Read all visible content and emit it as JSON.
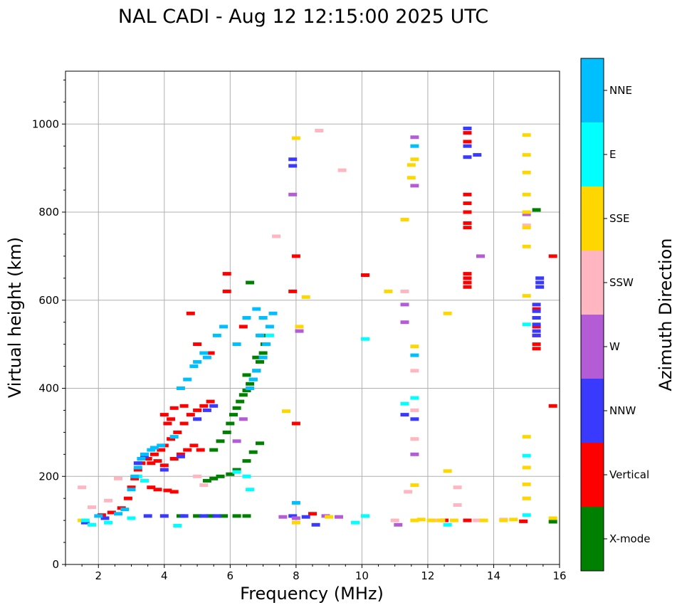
{
  "chart_data": {
    "type": "scatter",
    "title": "NAL CADI - Aug 12 12:15:00 2025 UTC",
    "xlabel": "Frequency (MHz)",
    "ylabel": "Virtual height (km)",
    "xlim": [
      1,
      16
    ],
    "ylim": [
      0,
      1120
    ],
    "xticks": [
      2,
      4,
      6,
      8,
      10,
      12,
      14,
      16
    ],
    "yticks": [
      0,
      200,
      400,
      600,
      800,
      1000
    ],
    "grid": true,
    "colorbar": {
      "label": "Azimuth Direction",
      "categories": [
        {
          "name": "X-mode",
          "color": "#008000"
        },
        {
          "name": "Vertical",
          "color": "#ff0000"
        },
        {
          "name": "NNW",
          "color": "#3a3aff"
        },
        {
          "name": "W",
          "color": "#b45cd6"
        },
        {
          "name": "SSW",
          "color": "#ffb6c1"
        },
        {
          "name": "SSE",
          "color": "#ffd700"
        },
        {
          "name": "E",
          "color": "#00ffff"
        },
        {
          "name": "NNE",
          "color": "#00bfff"
        }
      ]
    },
    "series": [
      {
        "name": "X-mode",
        "points": [
          [
            5.0,
            110
          ],
          [
            5.4,
            110
          ],
          [
            5.8,
            110
          ],
          [
            6.2,
            110
          ],
          [
            6.5,
            110
          ],
          [
            4.5,
            110
          ],
          [
            5.7,
            200
          ],
          [
            5.5,
            195
          ],
          [
            5.3,
            190
          ],
          [
            6.0,
            205
          ],
          [
            6.2,
            215
          ],
          [
            6.5,
            235
          ],
          [
            6.7,
            255
          ],
          [
            6.9,
            275
          ],
          [
            6.0,
            320
          ],
          [
            6.1,
            340
          ],
          [
            6.2,
            355
          ],
          [
            6.3,
            370
          ],
          [
            6.4,
            385
          ],
          [
            6.5,
            395
          ],
          [
            6.6,
            410
          ],
          [
            6.7,
            420
          ],
          [
            6.8,
            440
          ],
          [
            6.9,
            460
          ],
          [
            7.0,
            480
          ],
          [
            7.05,
            500
          ],
          [
            6.6,
            640
          ],
          [
            5.5,
            260
          ],
          [
            5.7,
            280
          ],
          [
            5.9,
            300
          ],
          [
            6.5,
            430
          ],
          [
            6.8,
            470
          ],
          [
            6.95,
            520
          ],
          [
            15.3,
            805
          ],
          [
            15.8,
            97
          ]
        ]
      },
      {
        "name": "Vertical",
        "points": [
          [
            2.1,
            112
          ],
          [
            2.4,
            118
          ],
          [
            2.7,
            128
          ],
          [
            2.9,
            150
          ],
          [
            3.0,
            175
          ],
          [
            3.1,
            195
          ],
          [
            3.2,
            215
          ],
          [
            3.3,
            230
          ],
          [
            3.5,
            240
          ],
          [
            3.7,
            250
          ],
          [
            3.9,
            260
          ],
          [
            4.0,
            270
          ],
          [
            4.2,
            285
          ],
          [
            4.4,
            300
          ],
          [
            4.6,
            320
          ],
          [
            4.8,
            340
          ],
          [
            5.0,
            350
          ],
          [
            5.2,
            360
          ],
          [
            5.4,
            370
          ],
          [
            3.6,
            230
          ],
          [
            3.8,
            235
          ],
          [
            4.0,
            225
          ],
          [
            4.3,
            240
          ],
          [
            4.5,
            250
          ],
          [
            4.7,
            260
          ],
          [
            4.9,
            270
          ],
          [
            5.1,
            260
          ],
          [
            3.6,
            175
          ],
          [
            3.8,
            170
          ],
          [
            4.1,
            168
          ],
          [
            4.3,
            165
          ],
          [
            4.1,
            320
          ],
          [
            4.0,
            340
          ],
          [
            4.2,
            330
          ],
          [
            4.6,
            360
          ],
          [
            4.3,
            355
          ],
          [
            4.8,
            570
          ],
          [
            5.0,
            500
          ],
          [
            5.4,
            480
          ],
          [
            5.9,
            660
          ],
          [
            5.9,
            620
          ],
          [
            6.4,
            540
          ],
          [
            8.0,
            700
          ],
          [
            8.0,
            320
          ],
          [
            7.9,
            620
          ],
          [
            8.5,
            115
          ],
          [
            10.1,
            657
          ],
          [
            13.2,
            980
          ],
          [
            13.2,
            960
          ],
          [
            13.2,
            840
          ],
          [
            13.2,
            820
          ],
          [
            13.2,
            800
          ],
          [
            13.2,
            775
          ],
          [
            13.2,
            765
          ],
          [
            13.2,
            660
          ],
          [
            13.2,
            650
          ],
          [
            13.2,
            640
          ],
          [
            13.2,
            630
          ],
          [
            15.3,
            580
          ],
          [
            15.3,
            560
          ],
          [
            15.3,
            540
          ],
          [
            15.3,
            520
          ],
          [
            15.3,
            500
          ],
          [
            15.3,
            490
          ],
          [
            15.8,
            700
          ],
          [
            15.8,
            360
          ],
          [
            12.5,
            100
          ],
          [
            13.2,
            100
          ],
          [
            14.9,
            98
          ]
        ]
      },
      {
        "name": "NNW",
        "points": [
          [
            3.5,
            110
          ],
          [
            4.0,
            110
          ],
          [
            4.6,
            110
          ],
          [
            5.2,
            110
          ],
          [
            5.6,
            110
          ],
          [
            1.6,
            95
          ],
          [
            2.2,
            105
          ],
          [
            3.2,
            230
          ],
          [
            3.4,
            245
          ],
          [
            4.0,
            215
          ],
          [
            4.5,
            245
          ],
          [
            5.0,
            330
          ],
          [
            5.3,
            350
          ],
          [
            5.5,
            360
          ],
          [
            7.9,
            110
          ],
          [
            8.3,
            108
          ],
          [
            8.6,
            90
          ],
          [
            7.9,
            920
          ],
          [
            7.9,
            905
          ],
          [
            11.3,
            340
          ],
          [
            11.6,
            330
          ],
          [
            13.2,
            990
          ],
          [
            13.2,
            950
          ],
          [
            13.2,
            925
          ],
          [
            13.5,
            930
          ],
          [
            15.4,
            650
          ],
          [
            15.4,
            640
          ],
          [
            15.4,
            630
          ],
          [
            15.3,
            590
          ],
          [
            15.3,
            575
          ],
          [
            15.3,
            560
          ],
          [
            15.3,
            545
          ],
          [
            15.3,
            530
          ],
          [
            15.3,
            520
          ]
        ]
      },
      {
        "name": "W",
        "points": [
          [
            7.6,
            108
          ],
          [
            8.0,
            105
          ],
          [
            8.9,
            110
          ],
          [
            9.3,
            108
          ],
          [
            11.1,
            90
          ],
          [
            7.9,
            840
          ],
          [
            8.1,
            530
          ],
          [
            11.3,
            550
          ],
          [
            11.3,
            590
          ],
          [
            11.6,
            970
          ],
          [
            11.6,
            860
          ],
          [
            11.6,
            250
          ],
          [
            13.6,
            700
          ],
          [
            15.0,
            795
          ],
          [
            6.4,
            330
          ],
          [
            6.2,
            280
          ]
        ]
      },
      {
        "name": "SSW",
        "points": [
          [
            1.5,
            175
          ],
          [
            1.8,
            130
          ],
          [
            2.3,
            145
          ],
          [
            2.6,
            195
          ],
          [
            5.0,
            200
          ],
          [
            5.2,
            180
          ],
          [
            8.7,
            985
          ],
          [
            9.4,
            895
          ],
          [
            7.4,
            745
          ],
          [
            11.3,
            620
          ],
          [
            11.6,
            440
          ],
          [
            11.6,
            350
          ],
          [
            11.6,
            285
          ],
          [
            11.4,
            165
          ],
          [
            12.9,
            175
          ],
          [
            12.9,
            135
          ],
          [
            13.5,
            100
          ],
          [
            14.3,
            102
          ],
          [
            15.0,
            770
          ],
          [
            15.0,
            150
          ],
          [
            11.0,
            100
          ],
          [
            12.2,
            100
          ]
        ]
      },
      {
        "name": "SSE",
        "points": [
          [
            1.5,
            100
          ],
          [
            11.6,
            100
          ],
          [
            12.4,
            100
          ],
          [
            12.8,
            100
          ],
          [
            11.8,
            102
          ],
          [
            12.1,
            100
          ],
          [
            13.7,
            100
          ],
          [
            14.3,
            100
          ],
          [
            14.6,
            102
          ],
          [
            15.8,
            105
          ],
          [
            8.0,
            968
          ],
          [
            8.0,
            95
          ],
          [
            8.3,
            607
          ],
          [
            8.1,
            540
          ],
          [
            7.7,
            348
          ],
          [
            9.0,
            108
          ],
          [
            10.8,
            620
          ],
          [
            11.3,
            783
          ],
          [
            11.6,
            920
          ],
          [
            11.5,
            907
          ],
          [
            11.5,
            878
          ],
          [
            11.6,
            495
          ],
          [
            11.6,
            180
          ],
          [
            12.6,
            570
          ],
          [
            12.6,
            212
          ],
          [
            15.0,
            975
          ],
          [
            15.0,
            930
          ],
          [
            15.0,
            890
          ],
          [
            15.0,
            840
          ],
          [
            15.0,
            800
          ],
          [
            15.0,
            765
          ],
          [
            15.0,
            722
          ],
          [
            15.0,
            610
          ],
          [
            15.0,
            290
          ],
          [
            15.0,
            220
          ],
          [
            15.0,
            182
          ],
          [
            15.0,
            150
          ]
        ]
      },
      {
        "name": "E",
        "points": [
          [
            1.6,
            100
          ],
          [
            1.8,
            90
          ],
          [
            2.3,
            95
          ],
          [
            3.0,
            105
          ],
          [
            3.2,
            200
          ],
          [
            3.4,
            190
          ],
          [
            4.4,
            88
          ],
          [
            6.2,
            210
          ],
          [
            6.5,
            200
          ],
          [
            6.6,
            170
          ],
          [
            7.0,
            560
          ],
          [
            7.2,
            520
          ],
          [
            10.1,
            512
          ],
          [
            10.1,
            110
          ],
          [
            9.8,
            95
          ],
          [
            11.3,
            365
          ],
          [
            11.6,
            378
          ],
          [
            12.6,
            90
          ],
          [
            15.0,
            545
          ],
          [
            15.0,
            247
          ],
          [
            15.0,
            112
          ]
        ]
      },
      {
        "name": "NNE",
        "points": [
          [
            2.0,
            110
          ],
          [
            2.6,
            115
          ],
          [
            2.8,
            125
          ],
          [
            3.0,
            170
          ],
          [
            3.1,
            200
          ],
          [
            3.2,
            220
          ],
          [
            3.3,
            240
          ],
          [
            3.6,
            260
          ],
          [
            3.9,
            270
          ],
          [
            4.3,
            290
          ],
          [
            4.5,
            400
          ],
          [
            4.7,
            420
          ],
          [
            4.9,
            450
          ],
          [
            5.0,
            460
          ],
          [
            5.2,
            480
          ],
          [
            5.3,
            470
          ],
          [
            5.6,
            520
          ],
          [
            5.8,
            540
          ],
          [
            6.2,
            500
          ],
          [
            6.5,
            560
          ],
          [
            6.8,
            580
          ],
          [
            7.0,
            560
          ],
          [
            7.2,
            540
          ],
          [
            7.3,
            570
          ],
          [
            6.9,
            520
          ],
          [
            7.1,
            500
          ],
          [
            7.0,
            470
          ],
          [
            6.8,
            440
          ],
          [
            6.7,
            420
          ],
          [
            6.6,
            400
          ],
          [
            3.4,
            250
          ],
          [
            3.7,
            265
          ],
          [
            11.6,
            475
          ],
          [
            11.6,
            950
          ],
          [
            8.0,
            140
          ]
        ]
      }
    ]
  }
}
